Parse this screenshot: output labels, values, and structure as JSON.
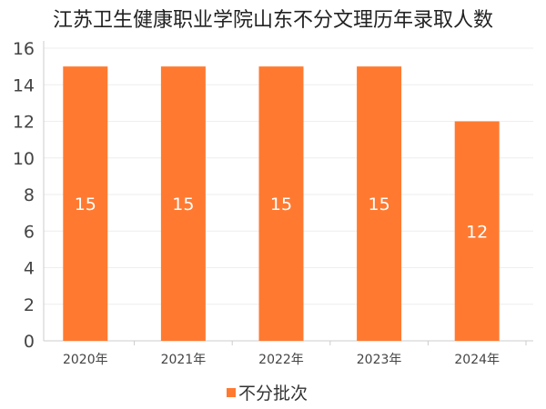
{
  "chart_data": {
    "type": "bar",
    "title": "江苏卫生健康职业学院山东不分文理历年录取人数",
    "categories": [
      "2020年",
      "2021年",
      "2022年",
      "2023年",
      "2024年"
    ],
    "series": [
      {
        "name": "不分批次",
        "values": [
          15,
          15,
          15,
          15,
          12
        ]
      }
    ],
    "xlabel": "",
    "ylabel": "",
    "ylim": [
      0,
      16
    ],
    "yticks": [
      0,
      2,
      4,
      6,
      8,
      10,
      12,
      14,
      16
    ],
    "grid": true,
    "legend": "bottom-center",
    "data_labels": true
  },
  "colors": {
    "bar": "#ff7a30",
    "grid": "#eeeeee",
    "axis": "#cccccc"
  }
}
